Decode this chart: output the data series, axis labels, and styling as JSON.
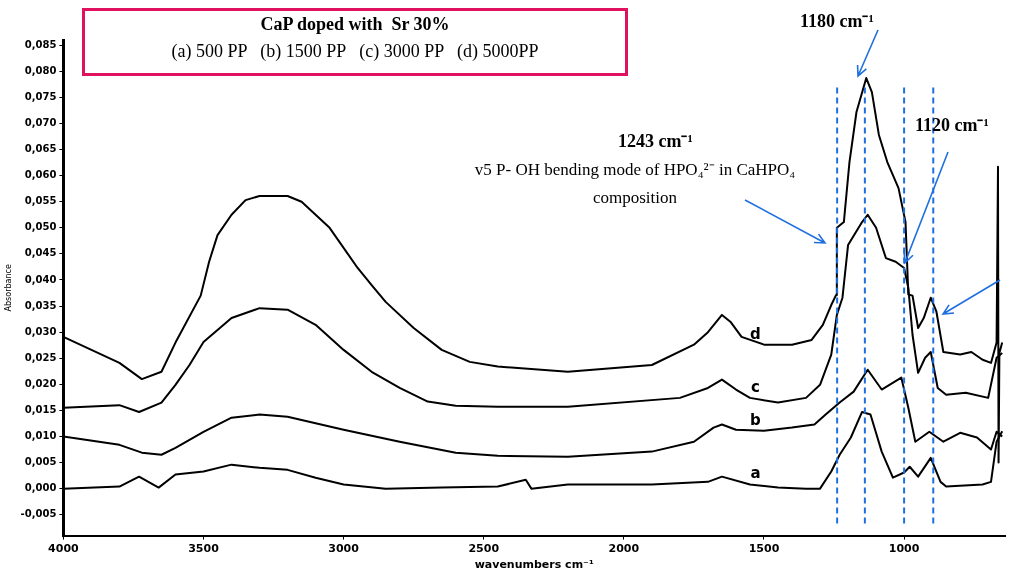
{
  "chart_data": {
    "type": "line",
    "title": "CaP doped with  Sr 30%",
    "subtitle": "(a) 500 PP   (b) 1500 PP   (c) 3000 PP   (d) 5000PP",
    "xlabel": "wavenumbers cm⁻¹",
    "ylabel": "Absorbance",
    "xlim": [
      4000,
      640
    ],
    "xticks": [
      4000,
      3500,
      3000,
      2500,
      2000,
      1500,
      1000
    ],
    "ylim": [
      -0.009,
      0.086
    ],
    "yticks": [
      {
        "value": -0.005,
        "label": "-0,005"
      },
      {
        "value": 0,
        "label": "0,000"
      },
      {
        "value": 0.005,
        "label": "0,005"
      },
      {
        "value": 0.01,
        "label": "0,010"
      },
      {
        "value": 0.015,
        "label": "0,015"
      },
      {
        "value": 0.02,
        "label": "0,020"
      },
      {
        "value": 0.025,
        "label": "0,025"
      },
      {
        "value": 0.03,
        "label": "0,030"
      },
      {
        "value": 0.035,
        "label": "0,035"
      },
      {
        "value": 0.04,
        "label": "0,040"
      },
      {
        "value": 0.045,
        "label": "0,045"
      },
      {
        "value": 0.05,
        "label": "0,050"
      },
      {
        "value": 0.055,
        "label": "0,055"
      },
      {
        "value": 0.06,
        "label": "0,060"
      },
      {
        "value": 0.065,
        "label": "0,065"
      },
      {
        "value": 0.07,
        "label": "0,070"
      },
      {
        "value": 0.075,
        "label": "0,075"
      },
      {
        "value": 0.08,
        "label": "0,080"
      },
      {
        "value": 0.085,
        "label": "0,085"
      }
    ],
    "grid": false,
    "legend": false,
    "marker": "none",
    "line_style": "solid",
    "series": [
      {
        "name": "a",
        "color": "#000000",
        "x": [
          4000,
          3800,
          3730,
          3660,
          3600,
          3500,
          3400,
          3300,
          3200,
          3100,
          3000,
          2850,
          2650,
          2450,
          2350,
          2330,
          2200,
          1900,
          1700,
          1650,
          1550,
          1450,
          1350,
          1300,
          1260,
          1230,
          1190,
          1150,
          1120,
          1080,
          1040,
          1000,
          980,
          950,
          905,
          870,
          850,
          720,
          690,
          670,
          650
        ],
        "values": [
          0.0,
          0.0004,
          0.0023,
          0.0002,
          0.0027,
          0.0033,
          0.0046,
          0.004,
          0.0036,
          0.0021,
          0.0008,
          0.0,
          0.0002,
          0.0004,
          0.0017,
          0.0,
          0.0008,
          0.0008,
          0.0013,
          0.0023,
          0.0008,
          0.0002,
          0.0,
          0.0,
          0.0033,
          0.0065,
          0.0098,
          0.0147,
          0.0142,
          0.0071,
          0.0021,
          0.0031,
          0.0042,
          0.0023,
          0.0059,
          0.0013,
          0.0004,
          0.0008,
          0.0013,
          0.009,
          0.011
        ]
      },
      {
        "name": "b",
        "color": "#000000",
        "x": [
          4000,
          3800,
          3720,
          3650,
          3600,
          3500,
          3400,
          3300,
          3200,
          3000,
          2800,
          2600,
          2450,
          2200,
          1900,
          1750,
          1680,
          1650,
          1600,
          1500,
          1400,
          1320,
          1280,
          1230,
          1180,
          1130,
          1080,
          1010,
          985,
          960,
          910,
          860,
          800,
          740,
          690,
          670,
          650
        ],
        "values": [
          0.01,
          0.0084,
          0.0069,
          0.0065,
          0.0078,
          0.0109,
          0.0136,
          0.0142,
          0.0138,
          0.0113,
          0.009,
          0.0069,
          0.0063,
          0.0061,
          0.0071,
          0.009,
          0.0117,
          0.0123,
          0.0113,
          0.0111,
          0.0117,
          0.0123,
          0.0142,
          0.0165,
          0.0186,
          0.0228,
          0.019,
          0.0213,
          0.0155,
          0.009,
          0.0109,
          0.009,
          0.0107,
          0.0098,
          0.0075,
          0.0109,
          0.01
        ]
      },
      {
        "name": "c",
        "color": "#000000",
        "x": [
          4000,
          3800,
          3730,
          3650,
          3600,
          3550,
          3500,
          3400,
          3300,
          3200,
          3100,
          3000,
          2900,
          2800,
          2700,
          2600,
          2450,
          2200,
          1800,
          1700,
          1650,
          1600,
          1550,
          1450,
          1350,
          1300,
          1260,
          1240,
          1220,
          1200,
          1150,
          1130,
          1100,
          1065,
          1030,
          1000,
          985,
          970,
          950,
          925,
          905,
          880,
          850,
          780,
          700,
          670,
          650
        ],
        "values": [
          0.0155,
          0.016,
          0.0147,
          0.0165,
          0.0199,
          0.0237,
          0.0281,
          0.0327,
          0.0346,
          0.0343,
          0.0314,
          0.0266,
          0.0224,
          0.0193,
          0.0167,
          0.0159,
          0.0157,
          0.0157,
          0.0174,
          0.0193,
          0.0209,
          0.019,
          0.0174,
          0.0165,
          0.0174,
          0.0199,
          0.0257,
          0.0333,
          0.0366,
          0.0467,
          0.0511,
          0.0525,
          0.05,
          0.0442,
          0.0435,
          0.0423,
          0.0385,
          0.0295,
          0.0222,
          0.0251,
          0.0262,
          0.0193,
          0.018,
          0.0184,
          0.0174,
          0.0251,
          0.026
        ]
      },
      {
        "name": "d",
        "color": "#000000",
        "x": [
          4000,
          3800,
          3720,
          3650,
          3600,
          3510,
          3480,
          3450,
          3400,
          3350,
          3300,
          3200,
          3150,
          3050,
          2950,
          2900,
          2850,
          2750,
          2650,
          2550,
          2450,
          2200,
          1900,
          1750,
          1700,
          1650,
          1620,
          1580,
          1500,
          1400,
          1330,
          1290,
          1260,
          1243,
          1240,
          1215,
          1195,
          1170,
          1135,
          1115,
          1090,
          1060,
          1020,
          995,
          985,
          970,
          950,
          930,
          905,
          885,
          860,
          800,
          760,
          720,
          690,
          670,
          665,
          663,
          660,
          650
        ],
        "values": [
          0.0291,
          0.0241,
          0.021,
          0.0224,
          0.028,
          0.037,
          0.0435,
          0.0486,
          0.0525,
          0.0553,
          0.0561,
          0.0561,
          0.055,
          0.05,
          0.0423,
          0.039,
          0.0358,
          0.0308,
          0.0266,
          0.0243,
          0.0234,
          0.0224,
          0.0237,
          0.0276,
          0.03,
          0.0333,
          0.032,
          0.0291,
          0.0276,
          0.0276,
          0.0285,
          0.0314,
          0.0352,
          0.0371,
          0.05,
          0.0511,
          0.0626,
          0.0722,
          0.0787,
          0.076,
          0.0678,
          0.0626,
          0.0576,
          0.0511,
          0.0372,
          0.037,
          0.0308,
          0.0327,
          0.0366,
          0.034,
          0.0262,
          0.0257,
          0.0262,
          0.0247,
          0.0241,
          0.028,
          0.0617,
          0.005,
          0.026,
          0.028
        ]
      }
    ],
    "ref_lines": [
      {
        "axis": "x",
        "value": 1239,
        "color": "#1f6fe0",
        "line_style": "dashed"
      },
      {
        "axis": "x",
        "value": 1140,
        "color": "#1f6fe0",
        "line_style": "dashed"
      },
      {
        "axis": "x",
        "value": 1000,
        "color": "#1f6fe0",
        "line_style": "dashed"
      },
      {
        "axis": "x",
        "value": 896,
        "color": "#1f6fe0",
        "line_style": "dashed"
      }
    ],
    "annotations": [
      "1243 cm⁻¹",
      "v5 P- OH bending mode of HPO₄²⁻ in CaHPO₄ composition",
      "1180 cm⁻¹",
      {
        "text": "1120 cm⁻¹",
        "x": 997,
        "y": 0.0433
      }
    ]
  }
}
